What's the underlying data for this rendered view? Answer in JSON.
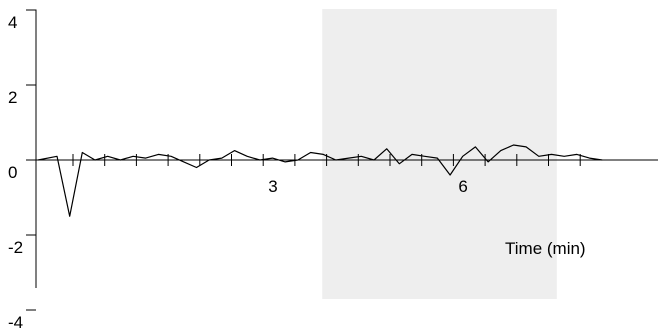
{
  "chart_data": {
    "type": "line",
    "title": "",
    "xlabel": "Time (min)",
    "ylabel": "",
    "xlim": [
      -0.6,
      8.3
    ],
    "ylim": [
      -4,
      4
    ],
    "grid": false,
    "legend": "none",
    "x_ticks": [
      0,
      0.5,
      1,
      1.5,
      2,
      2.5,
      3,
      3.5,
      4,
      4.5,
      5,
      5.5,
      6,
      6.5,
      7,
      7.5,
      8
    ],
    "x_tick_labels": [
      {
        "value": 3,
        "label": "3"
      },
      {
        "value": 6,
        "label": "6"
      }
    ],
    "y_ticks": [
      {
        "value": 4,
        "label": "4"
      },
      {
        "value": 2,
        "label": "2"
      },
      {
        "value": 0,
        "label": "0"
      },
      {
        "value": -2,
        "label": "-2"
      },
      {
        "value": -4,
        "label": "-4"
      }
    ],
    "shaded_region": {
      "x_start": 3.6,
      "x_end": 7.3,
      "color": "#eeeeee"
    },
    "series": [
      {
        "color": "#000000",
        "x": [
          -0.6,
          -0.3,
          -0.1,
          0.1,
          0.3,
          0.5,
          0.7,
          0.9,
          1.1,
          1.3,
          1.5,
          1.7,
          1.9,
          2.1,
          2.3,
          2.5,
          2.7,
          2.9,
          3.1,
          3.3,
          3.5,
          3.7,
          3.9,
          4.1,
          4.3,
          4.5,
          4.7,
          4.9,
          5.1,
          5.3,
          5.5,
          5.7,
          5.9,
          6.1,
          6.3,
          6.5,
          6.7,
          6.9,
          7.1,
          7.3,
          7.5,
          7.7,
          7.9,
          8.1,
          8.3
        ],
        "y": [
          0,
          0.1,
          -1.5,
          0.2,
          0,
          0.1,
          0,
          0.1,
          0.05,
          0.15,
          0.1,
          -0.05,
          -0.2,
          0,
          0.05,
          0.25,
          0.1,
          0,
          0.05,
          -0.05,
          0,
          0.2,
          0.15,
          0,
          0.05,
          0.1,
          0,
          0.3,
          -0.1,
          0.15,
          0.1,
          0.05,
          -0.4,
          0.1,
          0.35,
          -0.05,
          0.25,
          0.4,
          0.35,
          0.1,
          0.15,
          0.1,
          0.15,
          0.05,
          0
        ]
      }
    ]
  }
}
